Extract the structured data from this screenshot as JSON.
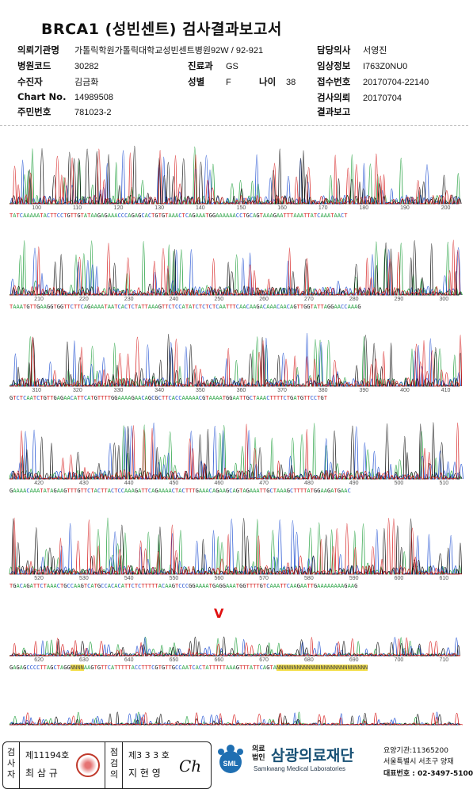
{
  "report": {
    "title": "BRCA1 (성빈센트) 검사결과보고서"
  },
  "header": {
    "institution_label": "의뢰기관명",
    "institution_value": "가톨릭학원가톨릭대학교성빈센트병원92W / 92-921",
    "hospital_code_label": "병원코드",
    "hospital_code_value": "30282",
    "department_label": "진료과",
    "department_value": "GS",
    "patient_label": "수진자",
    "patient_value": "김금화",
    "sex_label": "성별",
    "sex_value": "F",
    "age_label": "나이",
    "age_value": "38",
    "chart_label": "Chart No.",
    "chart_value": "14989508",
    "rrn_label": "주민번호",
    "rrn_value": "781023-2",
    "doctor_label": "담당의사",
    "doctor_value": "서영진",
    "clinical_label": "임상정보",
    "clinical_value": "I763Z0NU0",
    "receipt_label": "접수번호",
    "receipt_value": "20170704-22140",
    "request_label": "검사의뢰",
    "request_value": "20170704",
    "result_label": "결과보고",
    "result_value": ""
  },
  "chromatogram": {
    "colors": {
      "A": "#1e9e3a",
      "C": "#1f4fd1",
      "G": "#111111",
      "T": "#d62020"
    },
    "variant_mark": "V",
    "rows": [
      {
        "ticks": [
          "100",
          "110",
          "120",
          "130",
          "140",
          "150",
          "160",
          "170",
          "180",
          "190",
          "200"
        ],
        "sequence": "TATCAAAAATACTTCCTGTTGTATAAGAGAAACCCAGAGCACTGTGTAAACTCAGAAATGGAAAAAACCTGCAGTAAAGAATTTAAATTATCAAATAACT"
      },
      {
        "ticks": [
          "210",
          "220",
          "230",
          "240",
          "250",
          "260",
          "270",
          "280",
          "290",
          "300"
        ],
        "sequence": "TAAATGTTGAAGGTGGTTCTTCAGAAAATAATCACTCTATTAAAGTTCTCCATATCTCTCTCAATTTCAACAAGACAAACAACAGTTGGTATTAGGAACCAAAG"
      },
      {
        "ticks": [
          "310",
          "320",
          "330",
          "340",
          "350",
          "360",
          "370",
          "380",
          "390",
          "400",
          "410"
        ],
        "sequence": "GTCTCAATCTGTTGAGAACATTCATGTTTTGGAAAAGAACAGCGCTTCACCAAAAACGTAAAATGGAATTGCTAAACTTTTCTGATGTTCCTGT"
      },
      {
        "ticks": [
          "420",
          "430",
          "440",
          "450",
          "460",
          "470",
          "480",
          "490",
          "500",
          "510"
        ],
        "sequence": "GAAAACAAATATAGAAGTTTGTTCTACTTACTCCAAAGATTCAGAAAACTACTTTGAAACAGAAGCAGTAGAAATTGCTAAAGCTTTTATGGAAGATGAAC"
      },
      {
        "ticks": [
          "520",
          "530",
          "540",
          "550",
          "560",
          "570",
          "580",
          "590",
          "600",
          "610"
        ],
        "sequence": "TGACAGATTCTAAACTGCCAAGTCATGCCACACATTCTCTTTTTACAAGTCCCGGAAAATGAGGAAATGGTTTTGTCAAATTCAAGAATTGAAAAAAAAGAAG"
      },
      {
        "ticks": [
          "620",
          "630",
          "640",
          "650",
          "660",
          "670",
          "680",
          "690",
          "700",
          "710"
        ],
        "sequence": "GAGAGCCCCTTAGCTAGGNNNNAAGTGTTCATTTTTACCTTTCGTGTTGCCAATCACTATTTTTAAAGTTTATTCAGTANNNNNNNNNNNNNNNNNNNNNNNNNNN"
      },
      {
        "ticks": [],
        "sequence": ""
      }
    ]
  },
  "footer": {
    "tester_label": "검사자",
    "tester_no": "제11194호",
    "tester_name": "최 삼 규",
    "reviewer_label": "점검의",
    "reviewer_no": "제3 3 3 호",
    "reviewer_name": "지 현 영",
    "signature": "Ch",
    "org_small": "의료법인",
    "org_name": "삼광의료재단",
    "org_en": "Samkwang Medical Laboratories",
    "logo_text": "SML",
    "license": "요양기관:11365200",
    "address": "서울특별시 서초구 양재",
    "phone": "대표번호 : 02-3497-5100"
  }
}
